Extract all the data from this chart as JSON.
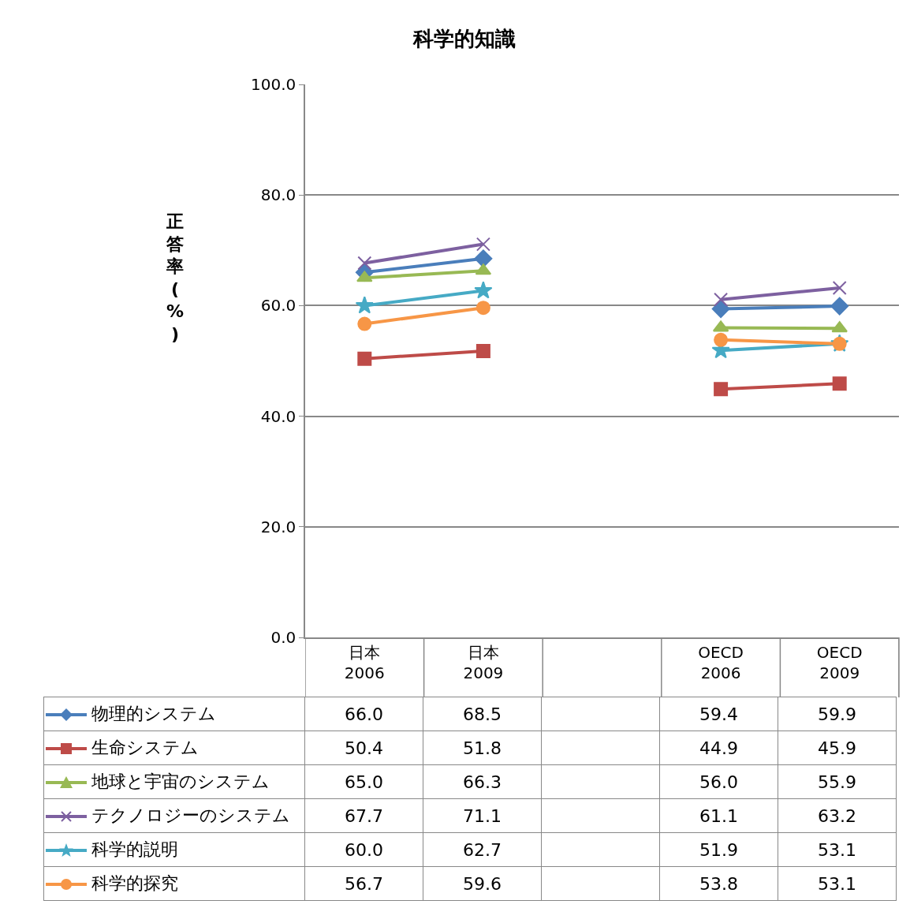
{
  "chart_data": {
    "type": "line",
    "title": "科学的知識",
    "ylabel": "正答率(%)",
    "categories": [
      "日本\n2006",
      "日本\n2009",
      null,
      "OECD\n2006",
      "OECD\n2009"
    ],
    "ylim": [
      0,
      100
    ],
    "yticks": [
      {
        "value": 0,
        "label": "0.0"
      },
      {
        "value": 20,
        "label": "20.0"
      },
      {
        "value": 40,
        "label": "40.0"
      },
      {
        "value": 60,
        "label": "60.0"
      },
      {
        "value": 80,
        "label": "80.0"
      },
      {
        "value": 100,
        "label": "100.0"
      }
    ],
    "grid": "y",
    "legend": "bottom",
    "line_style": "solid",
    "series": [
      {
        "name": "物理的システム",
        "color": "#4a7ebb",
        "marker": "diamond",
        "values": [
          66.0,
          68.5,
          null,
          59.4,
          59.9
        ],
        "value_labels": [
          "66.0",
          "68.5",
          null,
          "59.4",
          "59.9"
        ]
      },
      {
        "name": "生命システム",
        "color": "#be4b48",
        "marker": "square",
        "values": [
          50.4,
          51.8,
          null,
          44.9,
          45.9
        ],
        "value_labels": [
          "50.4",
          "51.8",
          null,
          "44.9",
          "45.9"
        ]
      },
      {
        "name": "地球と宇宙のシステム",
        "color": "#98b954",
        "marker": "triangle",
        "values": [
          65.0,
          66.3,
          null,
          56.0,
          55.9
        ],
        "value_labels": [
          "65.0",
          "66.3",
          null,
          "56.0",
          "55.9"
        ]
      },
      {
        "name": "テクノロジーのシステム",
        "color": "#7d60a0",
        "marker": "cross",
        "values": [
          67.7,
          71.1,
          null,
          61.1,
          63.2
        ],
        "value_labels": [
          "67.7",
          "71.1",
          null,
          "61.1",
          "63.2"
        ]
      },
      {
        "name": "科学的説明",
        "color": "#46aac5",
        "marker": "star",
        "values": [
          60.0,
          62.7,
          null,
          51.9,
          53.1
        ],
        "value_labels": [
          "60.0",
          "62.7",
          null,
          "51.9",
          "53.1"
        ]
      },
      {
        "name": "科学的探究",
        "color": "#f79646",
        "marker": "circle",
        "values": [
          56.7,
          59.6,
          null,
          53.8,
          53.1
        ],
        "value_labels": [
          "56.7",
          "59.6",
          null,
          "53.8",
          "53.1"
        ]
      }
    ]
  }
}
